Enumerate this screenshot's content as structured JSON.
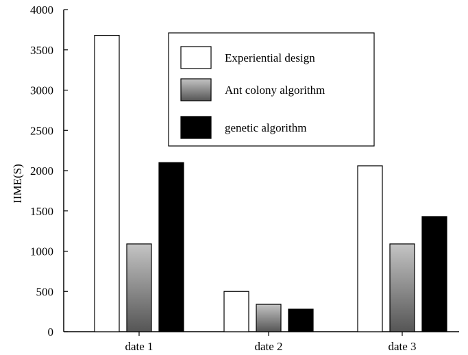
{
  "chart_data": {
    "type": "bar",
    "title": "",
    "xlabel": "",
    "ylabel": "IIME(S)",
    "ylim": [
      0,
      4000
    ],
    "yticks": [
      0,
      500,
      1000,
      1500,
      2000,
      2500,
      3000,
      3500,
      4000
    ],
    "categories": [
      "date 1",
      "date 2",
      "date 3"
    ],
    "series": [
      {
        "name": "Experiential design",
        "values": [
          3680,
          500,
          2060
        ],
        "fill": "white"
      },
      {
        "name": "Ant colony algorithm",
        "values": [
          1090,
          340,
          1090
        ],
        "fill": "gray-gradient"
      },
      {
        "name": "genetic algorithm",
        "values": [
          2100,
          280,
          1430
        ],
        "fill": "black"
      }
    ],
    "legend_position": "top-right",
    "grid": false
  }
}
